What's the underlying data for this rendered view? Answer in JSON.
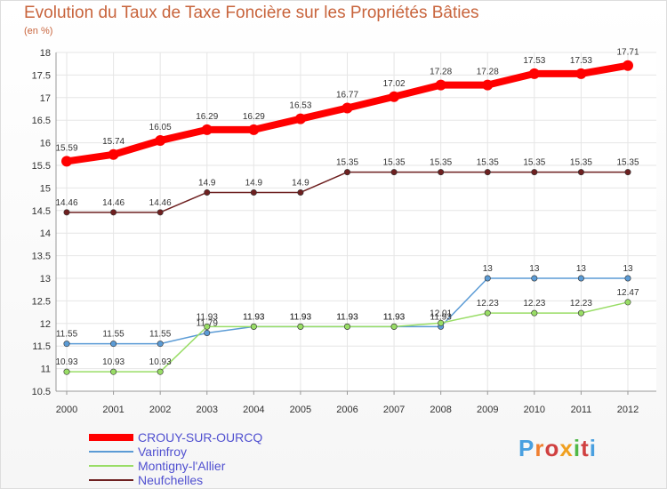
{
  "chart_data": {
    "type": "line",
    "title": "Evolution du Taux de Taxe Foncière sur les Propriétés Bâties",
    "unit_label": "(en %)",
    "x": [
      "2000",
      "2001",
      "2002",
      "2003",
      "2004",
      "2005",
      "2006",
      "2007",
      "2008",
      "2009",
      "2010",
      "2011",
      "2012"
    ],
    "ylim": [
      10.5,
      18
    ],
    "yticks": [
      "10.5",
      "11",
      "11.5",
      "12",
      "12.5",
      "13",
      "13.5",
      "14",
      "14.5",
      "15",
      "15.5",
      "16",
      "16.5",
      "17",
      "17.5",
      "18"
    ],
    "series": [
      {
        "name": "Neufchelles",
        "color": "#6e2020",
        "values": [
          14.46,
          14.46,
          14.46,
          14.9,
          14.9,
          14.9,
          15.35,
          15.35,
          15.35,
          15.35,
          15.35,
          15.35,
          15.35
        ],
        "labels": [
          "14.46",
          "14.46",
          "14.46",
          "14.9",
          "14.9",
          "14.9",
          "15.35",
          "15.35",
          "15.35",
          "15.35",
          "15.35",
          "15.35",
          "15.35"
        ]
      },
      {
        "name": "Varinfroy",
        "color": "#5b9bd5",
        "values": [
          11.55,
          11.55,
          11.55,
          11.79,
          11.93,
          11.93,
          11.93,
          11.93,
          11.93,
          13,
          13,
          13,
          13
        ],
        "labels": [
          "11.55",
          "11.55",
          "11.55",
          "11.79",
          "11.93",
          "11.93",
          "11.93",
          "11.93",
          "11.93",
          "13",
          "13",
          "13",
          "13"
        ]
      },
      {
        "name": "Montigny-l'Allier",
        "color": "#99dd66",
        "values": [
          10.93,
          10.93,
          10.93,
          11.93,
          11.93,
          11.93,
          11.93,
          11.93,
          12.01,
          12.23,
          12.23,
          12.23,
          12.47
        ],
        "labels": [
          "10.93",
          "10.93",
          "10.93",
          "11.93",
          "11.93",
          "11.93",
          "11.93",
          "11.93",
          "12.01",
          "12.23",
          "12.23",
          "12.23",
          "12.47"
        ]
      },
      {
        "name": "CROUY-SUR-OURCQ",
        "color": "#ff0000",
        "values": [
          15.59,
          15.74,
          16.05,
          16.29,
          16.29,
          16.53,
          16.77,
          17.02,
          17.28,
          17.28,
          17.53,
          17.53,
          17.71
        ],
        "labels": [
          "15.59",
          "15.74",
          "16.05",
          "16.29",
          "16.29",
          "16.53",
          "16.77",
          "17.02",
          "17.28",
          "17.28",
          "17.53",
          "17.53",
          "17.71"
        ]
      }
    ],
    "legend": [
      {
        "name": "CROUY-SUR-OURCQ",
        "color": "#ff0000"
      },
      {
        "name": "Varinfroy",
        "color": "#5b9bd5"
      },
      {
        "name": "Montigny-l'Allier",
        "color": "#99dd66"
      },
      {
        "name": "Neufchelles",
        "color": "#6e2020"
      }
    ],
    "legend_position": "bottom-left",
    "grid": true
  },
  "logo": {
    "text": "Proxiti",
    "letter_colors": [
      "#4aa0e0",
      "#f08030",
      "#d04040",
      "#f0a020",
      "#50b848",
      "#d04040",
      "#4aa0e0"
    ]
  }
}
